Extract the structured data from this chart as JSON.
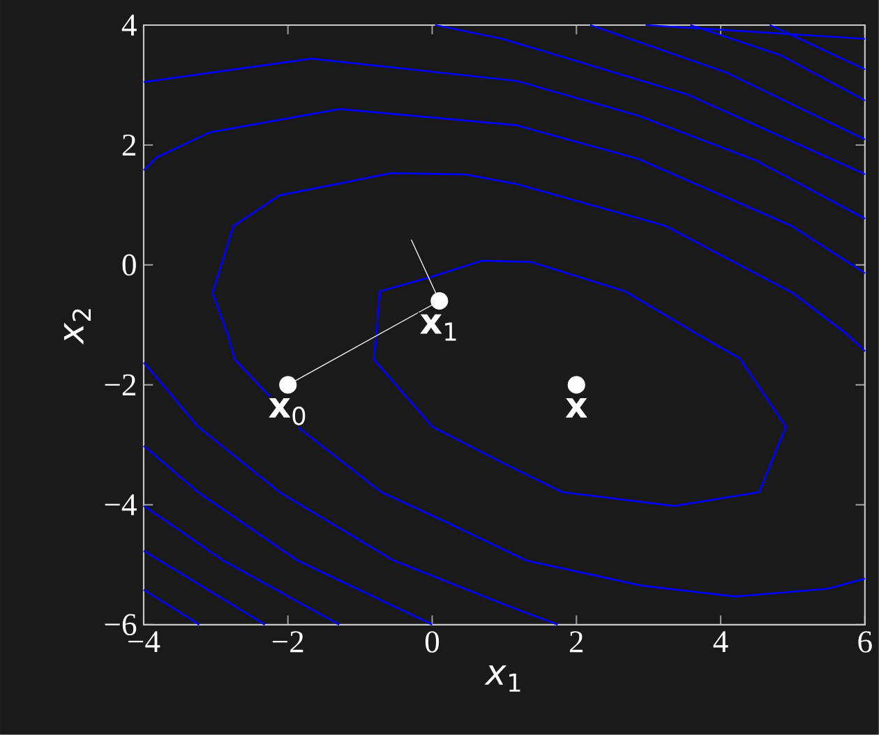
{
  "chart_data": {
    "type": "line",
    "xlabel": "*x*$_{1}$",
    "ylabel": "*x*$_{2}$",
    "xlim": [
      -4,
      6
    ],
    "ylim": [
      -6,
      4
    ],
    "xticks": [
      {
        "value": -4,
        "label": "−4"
      },
      {
        "value": -2,
        "label": "−2"
      },
      0,
      2,
      4,
      6
    ],
    "yticks": [
      {
        "value": -6,
        "label": "−6"
      },
      {
        "value": -4,
        "label": "−4"
      },
      {
        "value": -2,
        "label": "−2"
      },
      0,
      2,
      4
    ],
    "series": [
      {
        "color": "#0000ff",
        "x": [
          -0.81,
          -0.73,
          -0.02,
          0.68,
          1.36,
          2.67,
          3.68,
          4.26,
          4.9
        ],
        "values": [
          -1.58,
          -0.44,
          -0.2,
          0.07,
          0.05,
          -0.44,
          -1.16,
          -1.56,
          -2.7
        ]
      },
      {
        "color": "#0000ff",
        "x": [
          -0.81,
          0.0,
          0.97,
          1.8,
          3.35,
          4.53,
          4.9
        ],
        "values": [
          -1.58,
          -2.7,
          -3.3,
          -3.79,
          -4.02,
          -3.79,
          -2.7
        ]
      },
      {
        "color": "#0000ff",
        "x": [
          -3.05,
          -2.76,
          -2.12,
          -0.58,
          0.45,
          1.16,
          3.23,
          5.0,
          5.75,
          6
        ],
        "values": [
          -0.47,
          0.65,
          1.16,
          1.53,
          1.51,
          1.35,
          0.65,
          -0.47,
          -1.16,
          -1.44
        ]
      },
      {
        "color": "#0000ff",
        "x": [
          -3.05,
          -2.84,
          -2.74,
          -1.83,
          -0.71,
          0.14,
          1.3,
          2.9,
          4.2,
          5.48,
          6
        ],
        "values": [
          -0.47,
          -1.16,
          -1.58,
          -2.74,
          -3.79,
          -4.26,
          -4.93,
          -5.35,
          -5.53,
          -5.4,
          -5.23
        ]
      },
      {
        "color": "#0000ff",
        "x": [
          -4,
          -3.83,
          -3.09,
          -1.29,
          1.16,
          2.85,
          4.98,
          6
        ],
        "values": [
          1.58,
          1.79,
          2.21,
          2.6,
          2.33,
          1.77,
          0.65,
          -0.14
        ]
      },
      {
        "color": "#0000ff",
        "x": [
          -4,
          -1.68,
          1.16,
          2.85,
          4.49,
          6
        ],
        "values": [
          3.05,
          3.44,
          3.07,
          2.49,
          1.74,
          0.77
        ]
      },
      {
        "color": "#0000ff",
        "x": [
          0.04,
          0.97,
          3.54,
          6
        ],
        "values": [
          4,
          3.77,
          2.84,
          1.51
        ]
      },
      {
        "color": "#0000ff",
        "x": [
          2.19,
          4.07,
          6
        ],
        "values": [
          4,
          3.21,
          2.09
        ]
      },
      {
        "color": "#0000ff",
        "x": [
          3.58,
          4.84,
          6
        ],
        "values": [
          4,
          3.49,
          2.74
        ]
      },
      {
        "color": "#0000ff",
        "x": [
          4.68,
          6
        ],
        "values": [
          4,
          3.26
        ]
      },
      {
        "color": "#0000ff",
        "x": [
          2.96,
          6
        ],
        "values": [
          4,
          3.77
        ]
      },
      {
        "color": "#0000ff",
        "x": [
          -4,
          -3.25,
          -2.12,
          -0.54,
          1.16,
          1.74
        ],
        "values": [
          -1.63,
          -2.7,
          -3.79,
          -4.93,
          -5.74,
          -6
        ]
      },
      {
        "color": "#0000ff",
        "x": [
          -4,
          -3.25,
          -1.87,
          0
        ],
        "values": [
          -3.02,
          -3.79,
          -4.93,
          -6
        ]
      },
      {
        "color": "#0000ff",
        "x": [
          -4,
          -2.9,
          -1.29
        ],
        "values": [
          -4.02,
          -4.93,
          -6
        ]
      },
      {
        "color": "#0000ff",
        "x": [
          -4,
          -2.32
        ],
        "values": [
          -4.77,
          -6
        ]
      },
      {
        "color": "#0000ff",
        "x": [
          -4,
          -3.23
        ],
        "values": [
          -5.42,
          -6
        ]
      },
      {
        "color": "#ffffff",
        "x": [
          -2,
          0.1
        ],
        "values": [
          -2,
          -0.6
        ]
      },
      {
        "color": "#ffffff",
        "x": [
          0.1,
          -0.29
        ],
        "values": [
          -0.6,
          0.42
        ]
      },
      {
        "type": "scatter",
        "color": "#ffffff",
        "x": [
          -2,
          0.1,
          2
        ],
        "values": [
          -2,
          -0.6,
          -2
        ]
      }
    ],
    "annotations": [
      {
        "text": "**x**$_{0}$",
        "x": -2,
        "y": -2
      },
      {
        "text": "**x**$_{1}$",
        "x": 0.1,
        "y": -0.6
      },
      {
        "text": "**x**",
        "x": 2,
        "y": -2
      }
    ]
  }
}
